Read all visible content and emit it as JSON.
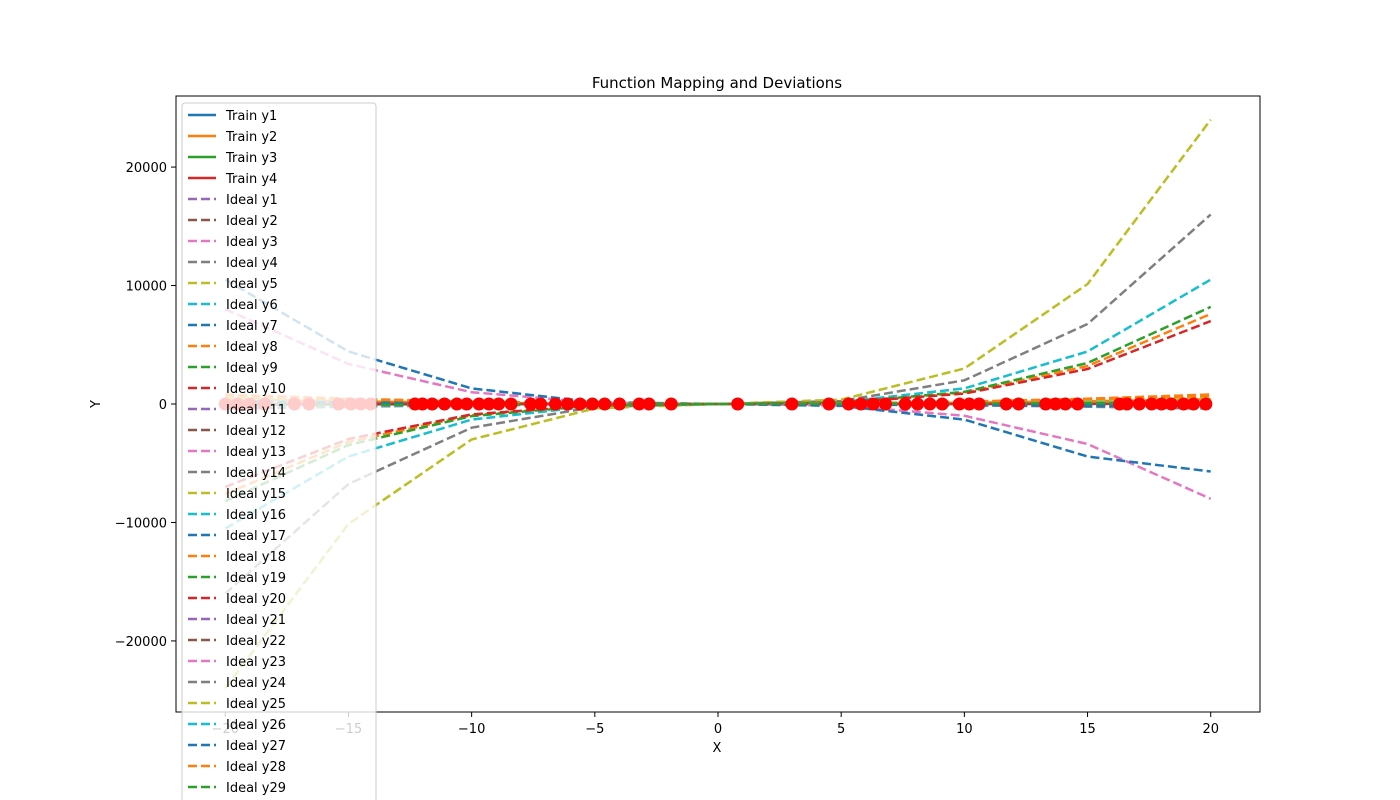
{
  "chart_data": {
    "type": "line",
    "title": "Function Mapping and Deviations",
    "xlabel": "X",
    "ylabel": "Y",
    "xlim": [
      -22,
      22
    ],
    "ylim": [
      -26000,
      26000
    ],
    "x_ticks": [
      -20,
      -15,
      -10,
      -5,
      0,
      5,
      10,
      15,
      20
    ],
    "x_tick_labels": [
      "−20",
      "−15",
      "−10",
      "−5",
      "0",
      "5",
      "10",
      "15",
      "20"
    ],
    "y_ticks": [
      -20000,
      -10000,
      0,
      10000,
      20000
    ],
    "y_tick_labels": [
      "−20000",
      "−10000",
      "0",
      "10000",
      "20000"
    ],
    "grid": false,
    "legend_position": "top-left",
    "x": [
      -20,
      -15,
      -10,
      -5,
      0,
      5,
      10,
      15,
      20
    ],
    "series": [
      {
        "name": "Train y1",
        "style": "solid",
        "color": "#1f77b4",
        "values": [
          -40,
          -30,
          -20,
          -10,
          0,
          10,
          20,
          30,
          40
        ]
      },
      {
        "name": "Train y2",
        "style": "solid",
        "color": "#ff7f0e",
        "values": [
          400,
          225,
          100,
          25,
          0,
          25,
          100,
          225,
          400
        ]
      },
      {
        "name": "Train y3",
        "style": "solid",
        "color": "#2ca02c",
        "values": [
          20,
          15,
          10,
          5,
          0,
          5,
          10,
          15,
          20
        ]
      },
      {
        "name": "Train y4",
        "style": "solid",
        "color": "#d62728",
        "values": [
          10,
          5,
          2,
          1,
          0,
          1,
          2,
          5,
          10
        ]
      },
      {
        "name": "Ideal y1",
        "style": "dashed",
        "color": "#9467bd",
        "values": [
          -20,
          -15,
          -10,
          -5,
          0,
          5,
          10,
          15,
          20
        ]
      },
      {
        "name": "Ideal y2",
        "style": "dashed",
        "color": "#8c564b",
        "values": [
          -200,
          -150,
          -100,
          -50,
          0,
          50,
          100,
          150,
          200
        ]
      },
      {
        "name": "Ideal y3",
        "style": "dashed",
        "color": "#e377c2",
        "values": [
          8000,
          3375,
          1000,
          125,
          0,
          -125,
          -1000,
          -3375,
          -8000
        ]
      },
      {
        "name": "Ideal y4",
        "style": "dashed",
        "color": "#7f7f7f",
        "values": [
          -16000,
          -6750,
          -2000,
          -250,
          0,
          250,
          2000,
          6750,
          16000
        ]
      },
      {
        "name": "Ideal y5",
        "style": "dashed",
        "color": "#bcbd22",
        "values": [
          -24000,
          -10125,
          -3000,
          -375,
          0,
          375,
          3000,
          10125,
          24000
        ]
      },
      {
        "name": "Ideal y6",
        "style": "dashed",
        "color": "#17becf",
        "values": [
          -10500,
          -4430,
          -1313,
          -164,
          0,
          164,
          1313,
          4430,
          10500
        ]
      },
      {
        "name": "Ideal y7",
        "style": "dashed",
        "color": "#1f77b4",
        "values": [
          10500,
          4430,
          1313,
          164,
          0,
          -164,
          -1313,
          -4430,
          -5700
        ]
      },
      {
        "name": "Ideal y8",
        "style": "dashed",
        "color": "#ff7f0e",
        "values": [
          -7600,
          -3206,
          -950,
          -119,
          0,
          119,
          950,
          3206,
          7600
        ]
      },
      {
        "name": "Ideal y9",
        "style": "dashed",
        "color": "#2ca02c",
        "values": [
          -8200,
          -3459,
          -1025,
          -128,
          0,
          128,
          1025,
          3459,
          8200
        ]
      },
      {
        "name": "Ideal y10",
        "style": "dashed",
        "color": "#d62728",
        "values": [
          -7000,
          -2953,
          -875,
          -109,
          0,
          109,
          875,
          2953,
          7000
        ]
      },
      {
        "name": "Ideal y11",
        "style": "dashed",
        "color": "#9467bd",
        "values": [
          -40,
          -30,
          -20,
          -10,
          0,
          10,
          20,
          30,
          40
        ]
      },
      {
        "name": "Ideal y12",
        "style": "dashed",
        "color": "#8c564b",
        "values": [
          40,
          30,
          20,
          10,
          0,
          -10,
          -20,
          -30,
          -40
        ]
      },
      {
        "name": "Ideal y13",
        "style": "dashed",
        "color": "#e377c2",
        "values": [
          400,
          225,
          100,
          25,
          0,
          25,
          100,
          225,
          400
        ]
      },
      {
        "name": "Ideal y14",
        "style": "dashed",
        "color": "#7f7f7f",
        "values": [
          -400,
          -225,
          -100,
          -25,
          0,
          -25,
          -100,
          -225,
          -400
        ]
      },
      {
        "name": "Ideal y15",
        "style": "dashed",
        "color": "#bcbd22",
        "values": [
          0,
          0,
          0,
          0,
          0,
          0,
          0,
          0,
          0
        ]
      },
      {
        "name": "Ideal y16",
        "style": "dashed",
        "color": "#17becf",
        "values": [
          200,
          113,
          50,
          13,
          0,
          13,
          50,
          113,
          200
        ]
      },
      {
        "name": "Ideal y17",
        "style": "dashed",
        "color": "#1f77b4",
        "values": [
          -1,
          0,
          1,
          0,
          -1,
          0,
          1,
          0,
          -1
        ]
      },
      {
        "name": "Ideal y18",
        "style": "dashed",
        "color": "#ff7f0e",
        "values": [
          800,
          450,
          200,
          50,
          0,
          50,
          200,
          450,
          800
        ]
      },
      {
        "name": "Ideal y19",
        "style": "dashed",
        "color": "#2ca02c",
        "values": [
          600,
          338,
          150,
          38,
          0,
          38,
          150,
          338,
          600
        ]
      },
      {
        "name": "Ideal y20",
        "style": "dashed",
        "color": "#d62728",
        "values": [
          -20,
          -15,
          -10,
          -5,
          0,
          5,
          10,
          15,
          20
        ]
      },
      {
        "name": "Ideal y21",
        "style": "dashed",
        "color": "#9467bd",
        "values": [
          -60,
          -45,
          -30,
          -15,
          0,
          15,
          30,
          45,
          60
        ]
      },
      {
        "name": "Ideal y22",
        "style": "dashed",
        "color": "#8c564b",
        "values": [
          60,
          45,
          30,
          15,
          0,
          -15,
          -30,
          -45,
          -60
        ]
      },
      {
        "name": "Ideal y23",
        "style": "dashed",
        "color": "#e377c2",
        "values": [
          300,
          169,
          75,
          19,
          0,
          19,
          75,
          169,
          300
        ]
      },
      {
        "name": "Ideal y24",
        "style": "dashed",
        "color": "#7f7f7f",
        "values": [
          -100,
          -75,
          -50,
          -25,
          0,
          25,
          50,
          75,
          100
        ]
      },
      {
        "name": "Ideal y25",
        "style": "dashed",
        "color": "#bcbd22",
        "values": [
          500,
          281,
          125,
          31,
          0,
          31,
          125,
          281,
          500
        ]
      },
      {
        "name": "Ideal y26",
        "style": "dashed",
        "color": "#17becf",
        "values": [
          -150,
          -113,
          -75,
          -38,
          0,
          38,
          75,
          113,
          150
        ]
      },
      {
        "name": "Ideal y27",
        "style": "dashed",
        "color": "#1f77b4",
        "values": [
          200,
          150,
          100,
          50,
          0,
          -50,
          -100,
          -150,
          -200
        ]
      },
      {
        "name": "Ideal y28",
        "style": "dashed",
        "color": "#ff7f0e",
        "values": [
          700,
          394,
          175,
          44,
          0,
          44,
          175,
          394,
          700
        ]
      },
      {
        "name": "Ideal y29",
        "style": "dashed",
        "color": "#2ca02c",
        "values": [
          -80,
          -60,
          -40,
          -20,
          0,
          20,
          40,
          60,
          80
        ]
      }
    ],
    "deviation_points": {
      "color": "#ff0000",
      "x": [
        -20,
        -19.5,
        -19,
        -18.4,
        -17.2,
        -16.6,
        -15.4,
        -14.9,
        -14.5,
        -14.1,
        -12.3,
        -12.0,
        -11.6,
        -11.1,
        -10.6,
        -10.2,
        -9.7,
        -9.3,
        -8.9,
        -8.4,
        -7.6,
        -7.2,
        -6.6,
        -6.1,
        -5.6,
        -5.1,
        -4.6,
        -4.0,
        -3.2,
        -2.8,
        -1.9,
        0.8,
        3.0,
        4.5,
        5.3,
        5.8,
        6.3,
        6.8,
        7.6,
        8.1,
        8.6,
        9.1,
        9.8,
        10.2,
        10.6,
        11.7,
        12.2,
        13.3,
        13.7,
        14.1,
        14.6,
        16.3,
        16.6,
        17.1,
        17.6,
        18.0,
        18.4,
        18.9,
        19.3,
        19.8
      ],
      "y": [
        0,
        0,
        0,
        0,
        0,
        0,
        0,
        0,
        0,
        0,
        0,
        0,
        0,
        0,
        0,
        0,
        0,
        0,
        0,
        0,
        0,
        0,
        0,
        0,
        0,
        0,
        0,
        0,
        0,
        0,
        0,
        0,
        0,
        0,
        0,
        0,
        0,
        0,
        0,
        0,
        0,
        0,
        0,
        0,
        0,
        0,
        0,
        0,
        0,
        0,
        0,
        0,
        0,
        0,
        0,
        0,
        0,
        0,
        0,
        0
      ]
    }
  }
}
